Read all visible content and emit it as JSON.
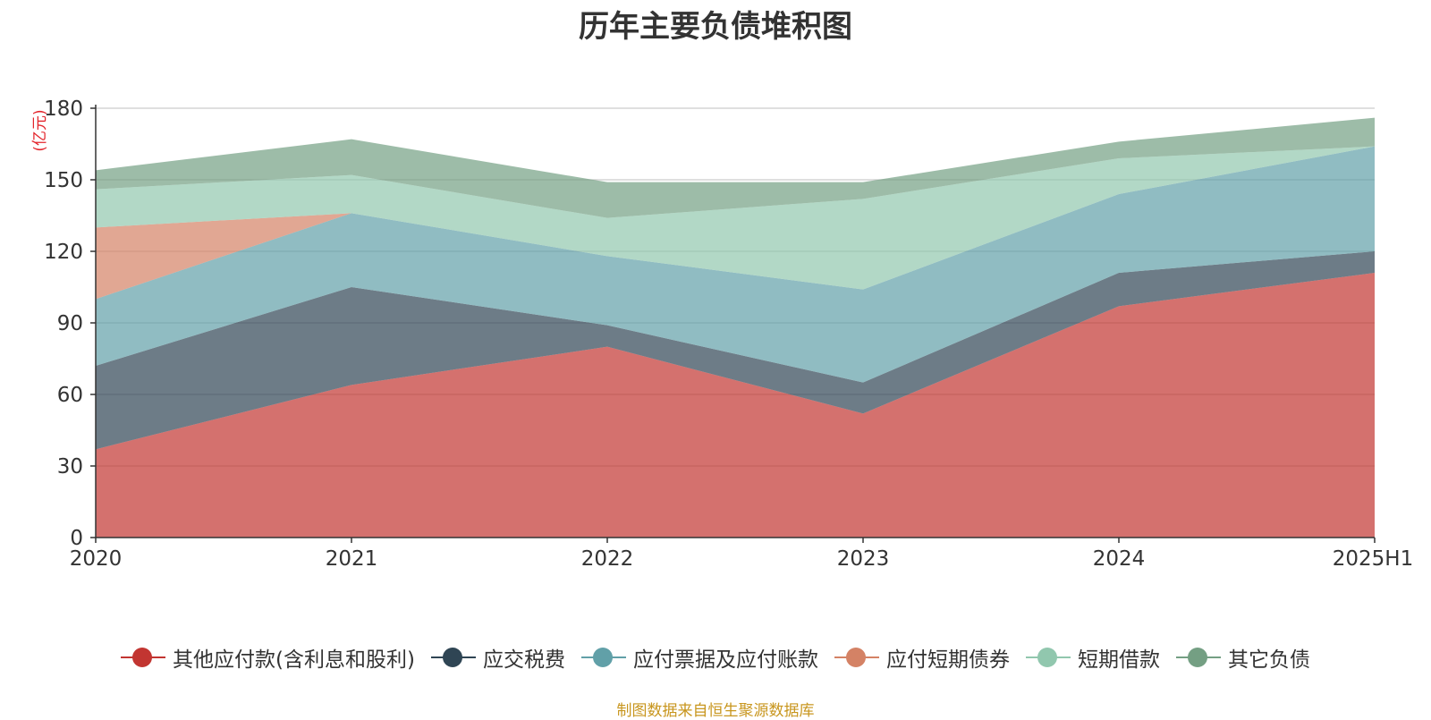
{
  "chart_data": {
    "type": "area",
    "stacked": true,
    "title": "历年主要负债堆积图",
    "ylabel": "(亿元)",
    "xlabel": "",
    "categories": [
      "2020",
      "2021",
      "2022",
      "2023",
      "2024",
      "2025H1"
    ],
    "yticks": [
      "0",
      "30",
      "60",
      "90",
      "120",
      "150",
      "180"
    ],
    "ylim": [
      0,
      180
    ],
    "grid": true,
    "legend_position": "bottom",
    "series": [
      {
        "name": "其他应付款(含利息和股利)",
        "color": "#c23531",
        "values": [
          37,
          64,
          80,
          52,
          97,
          111
        ]
      },
      {
        "name": "应交税费",
        "color": "#2f4554",
        "values": [
          35,
          41,
          9,
          13,
          14,
          9
        ]
      },
      {
        "name": "应付票据及应付账款",
        "color": "#61a0a8",
        "values": [
          28,
          31,
          29,
          39,
          33,
          44
        ]
      },
      {
        "name": "应付短期债券",
        "color": "#d48265",
        "values": [
          30,
          0,
          0,
          0,
          0,
          0
        ]
      },
      {
        "name": "短期借款",
        "color": "#91c7ae",
        "values": [
          16,
          16,
          16,
          38,
          15,
          0
        ]
      },
      {
        "name": "其它负债",
        "color": "#749f83",
        "values": [
          8,
          15,
          15,
          7,
          7,
          12
        ]
      }
    ]
  },
  "source_note": "制图数据来自恒生聚源数据库"
}
